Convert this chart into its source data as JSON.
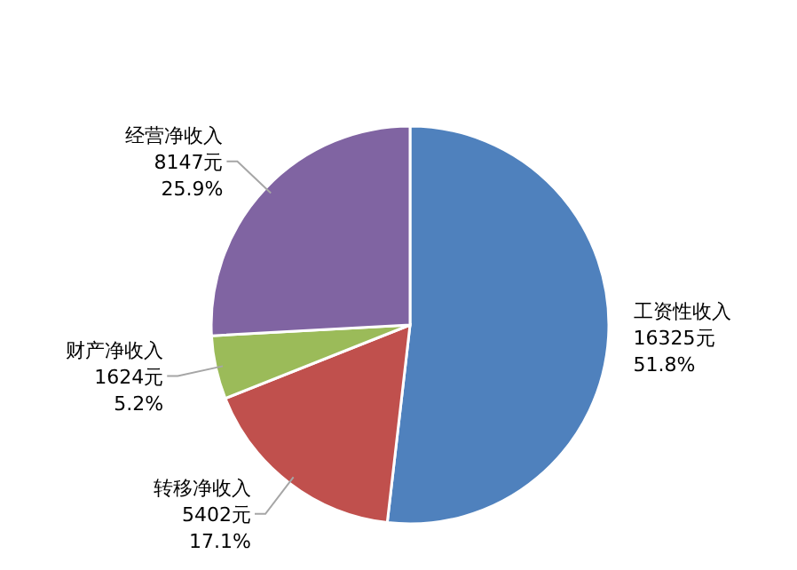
{
  "chart_data": {
    "type": "pie",
    "categories": [
      "工资性收入",
      "转移净收入",
      "财产净收入",
      "经营净收入"
    ],
    "values": [
      16325,
      5402,
      1624,
      8147
    ],
    "colors": [
      "#4f81bd",
      "#c0504d",
      "#9bbb59",
      "#8064a2"
    ],
    "value_labels": [
      "16325元\n51.8%",
      "5402元\n17.1%",
      "1624元\n5.2%",
      "8147元\n25.9%"
    ]
  }
}
